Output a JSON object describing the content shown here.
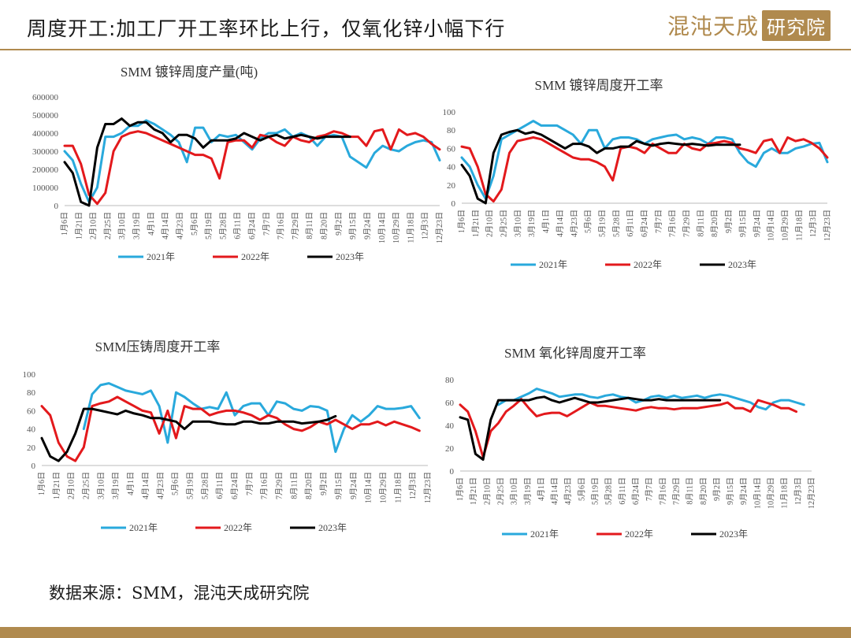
{
  "header": {
    "title": "周度开工:加工厂开工率环比上行，仅氧化锌小幅下行",
    "logo_text": "混沌天成",
    "logo_box": "研究院"
  },
  "footer": {
    "source": "数据来源：SMM，混沌天成研究院"
  },
  "colors": {
    "2021": "#29a9dc",
    "2022": "#e3191c",
    "2023": "#000000",
    "accent": "#b08a4e"
  },
  "chart_data": [
    {
      "type": "line",
      "title": "SMM 镀锌周度产量(吨)",
      "ylim": [
        0,
        600000
      ],
      "yticks": [
        0,
        100000,
        200000,
        300000,
        400000,
        500000,
        600000
      ],
      "ytick_labels": [
        "0",
        "100000",
        "200000",
        "300000",
        "400000",
        "500000",
        "600000"
      ],
      "xtick_labels": [
        "1月6日",
        "1月21日",
        "2月10日",
        "2月25日",
        "3月10日",
        "3月19日",
        "4月1日",
        "4月14日",
        "4月23日",
        "5月6日",
        "5月19日",
        "5月28日",
        "6月11日",
        "6月24日",
        "7月7日",
        "7月16日",
        "7月29日",
        "8月11日",
        "8月20日",
        "9月2日",
        "9月15日",
        "9月24日",
        "10月14日",
        "10月29日",
        "11月18日",
        "12月3日",
        "12月23日"
      ],
      "legend": [
        "2021年",
        "2022年",
        "2023年"
      ],
      "legend_position": "bottom",
      "series": [
        {
          "name": "2021年",
          "values": [
            300000,
            250000,
            120000,
            20000,
            100000,
            380000,
            380000,
            400000,
            440000,
            440000,
            470000,
            450000,
            420000,
            390000,
            350000,
            240000,
            430000,
            430000,
            350000,
            390000,
            380000,
            390000,
            350000,
            310000,
            370000,
            400000,
            400000,
            420000,
            380000,
            400000,
            380000,
            330000,
            380000,
            390000,
            380000,
            270000,
            240000,
            210000,
            290000,
            330000,
            310000,
            300000,
            330000,
            350000,
            360000,
            350000,
            250000
          ]
        },
        {
          "name": "2022年",
          "values": [
            330000,
            330000,
            230000,
            60000,
            10000,
            70000,
            300000,
            380000,
            400000,
            410000,
            400000,
            380000,
            360000,
            340000,
            320000,
            300000,
            280000,
            280000,
            260000,
            150000,
            350000,
            360000,
            360000,
            320000,
            390000,
            380000,
            350000,
            330000,
            380000,
            360000,
            350000,
            380000,
            390000,
            410000,
            400000,
            380000,
            380000,
            330000,
            410000,
            420000,
            310000,
            420000,
            390000,
            400000,
            380000,
            340000,
            310000
          ]
        },
        {
          "name": "2023年",
          "values": [
            240000,
            180000,
            20000,
            0,
            320000,
            450000,
            450000,
            480000,
            440000,
            460000,
            460000,
            420000,
            400000,
            350000,
            390000,
            390000,
            370000,
            320000,
            360000,
            360000,
            360000,
            370000,
            400000,
            380000,
            360000,
            380000,
            390000,
            370000,
            380000,
            390000,
            380000,
            370000,
            380000,
            380000,
            380000,
            380000
          ]
        }
      ]
    },
    {
      "type": "line",
      "title": "SMM 镀锌周度开工率",
      "ylim": [
        0,
        100
      ],
      "yticks": [
        0,
        20,
        40,
        60,
        80,
        100
      ],
      "ytick_labels": [
        "0",
        "20",
        "40",
        "60",
        "80",
        "100"
      ],
      "xtick_labels": [
        "1月6日",
        "1月21日",
        "2月10日",
        "2月25日",
        "3月10日",
        "3月19日",
        "4月1日",
        "4月14日",
        "4月23日",
        "5月6日",
        "5月19日",
        "5月28日",
        "6月11日",
        "6月24日",
        "7月7日",
        "7月16日",
        "7月29日",
        "8月11日",
        "8月20日",
        "9月2日",
        "9月15日",
        "9月24日",
        "10月14日",
        "10月29日",
        "11月18日",
        "12月3日",
        "12月23日"
      ],
      "legend": [
        "2021年",
        "2022年",
        "2023年"
      ],
      "legend_position": "bottom",
      "series": [
        {
          "name": "2021年",
          "values": [
            50,
            40,
            20,
            5,
            30,
            70,
            75,
            80,
            85,
            90,
            85,
            85,
            85,
            80,
            75,
            65,
            80,
            80,
            60,
            70,
            72,
            72,
            70,
            65,
            70,
            72,
            74,
            75,
            70,
            72,
            70,
            65,
            72,
            72,
            70,
            55,
            45,
            40,
            55,
            60,
            55,
            55,
            60,
            62,
            65,
            66,
            45
          ]
        },
        {
          "name": "2022年",
          "values": [
            62,
            60,
            40,
            10,
            2,
            15,
            55,
            68,
            70,
            72,
            70,
            65,
            60,
            55,
            50,
            48,
            48,
            45,
            40,
            25,
            60,
            62,
            60,
            55,
            65,
            60,
            55,
            55,
            65,
            60,
            58,
            65,
            66,
            68,
            66,
            60,
            58,
            55,
            68,
            70,
            55,
            72,
            68,
            70,
            66,
            60,
            50
          ]
        },
        {
          "name": "2023年",
          "values": [
            42,
            30,
            5,
            0,
            55,
            75,
            78,
            80,
            76,
            78,
            75,
            70,
            65,
            60,
            65,
            65,
            62,
            55,
            60,
            60,
            62,
            62,
            68,
            65,
            63,
            65,
            66,
            65,
            64,
            65,
            64,
            63,
            64,
            64,
            64,
            64
          ]
        }
      ]
    },
    {
      "type": "line",
      "title": "SMM压铸周度开工率",
      "ylim": [
        0,
        100
      ],
      "yticks": [
        0,
        20,
        40,
        60,
        80,
        100
      ],
      "ytick_labels": [
        "0",
        "20",
        "40",
        "60",
        "80",
        "100"
      ],
      "xtick_labels": [
        "1月6日",
        "1月21日",
        "2月10日",
        "2月25日",
        "3月10日",
        "3月19日",
        "4月1日",
        "4月14日",
        "4月23日",
        "5月6日",
        "5月19日",
        "5月28日",
        "6月11日",
        "6月24日",
        "7月7日",
        "7月16日",
        "7月29日",
        "8月11日",
        "8月20日",
        "9月2日",
        "9月15日",
        "9月24日",
        "10月14日",
        "10月29日",
        "11月18日",
        "12月3日",
        "12月23日"
      ],
      "legend": [
        "2021年",
        "2022年",
        "2023年"
      ],
      "legend_position": "bottom",
      "series": [
        {
          "name": "2021年",
          "values": [
            null,
            null,
            null,
            null,
            null,
            40,
            78,
            88,
            90,
            86,
            82,
            80,
            78,
            82,
            65,
            25,
            80,
            75,
            68,
            62,
            64,
            62,
            80,
            55,
            65,
            68,
            68,
            55,
            70,
            68,
            62,
            60,
            65,
            64,
            60,
            15,
            40,
            55,
            48,
            55,
            65,
            62,
            62,
            63,
            65,
            52
          ]
        },
        {
          "name": "2022年",
          "values": [
            65,
            55,
            25,
            10,
            5,
            20,
            65,
            68,
            70,
            75,
            70,
            65,
            60,
            58,
            35,
            60,
            30,
            65,
            62,
            62,
            55,
            58,
            60,
            60,
            58,
            55,
            50,
            55,
            52,
            45,
            40,
            38,
            42,
            48,
            45,
            50,
            45,
            40,
            45,
            45,
            48,
            44,
            48,
            45,
            42,
            38
          ]
        },
        {
          "name": "2023年",
          "values": [
            30,
            10,
            5,
            15,
            35,
            62,
            62,
            60,
            58,
            56,
            60,
            57,
            55,
            52,
            52,
            50,
            48,
            40,
            48,
            48,
            48,
            46,
            45,
            45,
            48,
            48,
            46,
            46,
            48,
            48,
            48,
            46,
            47,
            48,
            50,
            54
          ]
        }
      ]
    },
    {
      "type": "line",
      "title": "SMM 氧化锌周度开工率",
      "ylim": [
        0,
        80
      ],
      "yticks": [
        0,
        20,
        40,
        60,
        80
      ],
      "ytick_labels": [
        "0",
        "20",
        "40",
        "60",
        "80"
      ],
      "xtick_labels": [
        "1月6日",
        "1月21日",
        "2月10日",
        "2月25日",
        "3月10日",
        "3月19日",
        "4月1日",
        "4月14日",
        "4月23日",
        "5月6日",
        "5月19日",
        "5月28日",
        "6月11日",
        "6月24日",
        "7月7日",
        "7月16日",
        "7月29日",
        "8月11日",
        "8月20日",
        "9月2日",
        "9月15日",
        "9月24日",
        "10月14日",
        "10月29日",
        "11月18日",
        "12月3日",
        "12月23日"
      ],
      "legend": [
        "2021年",
        "2022年",
        "2023年"
      ],
      "legend_position": "bottom",
      "series": [
        {
          "name": "2021年",
          "values": [
            null,
            null,
            null,
            null,
            null,
            58,
            62,
            62,
            65,
            68,
            72,
            70,
            68,
            65,
            66,
            67,
            67,
            65,
            64,
            66,
            67,
            65,
            64,
            60,
            62,
            65,
            66,
            64,
            66,
            64,
            65,
            66,
            64,
            66,
            67,
            66,
            64,
            62,
            60,
            56,
            54,
            60,
            62,
            62,
            60,
            58
          ]
        },
        {
          "name": "2022年",
          "values": [
            58,
            52,
            35,
            12,
            35,
            42,
            52,
            57,
            63,
            55,
            48,
            50,
            51,
            51,
            48,
            52,
            56,
            60,
            57,
            57,
            56,
            55,
            54,
            53,
            55,
            56,
            55,
            55,
            54,
            55,
            55,
            55,
            56,
            57,
            58,
            60,
            55,
            55,
            52,
            62,
            60,
            58,
            55,
            55,
            52
          ]
        },
        {
          "name": "2023年",
          "values": [
            47,
            45,
            15,
            10,
            45,
            62,
            62,
            62,
            62,
            62,
            64,
            65,
            62,
            60,
            62,
            64,
            62,
            60,
            60,
            61,
            62,
            63,
            64,
            63,
            62,
            62,
            63,
            62,
            62,
            62,
            62,
            62,
            62,
            62,
            62
          ]
        }
      ]
    }
  ]
}
